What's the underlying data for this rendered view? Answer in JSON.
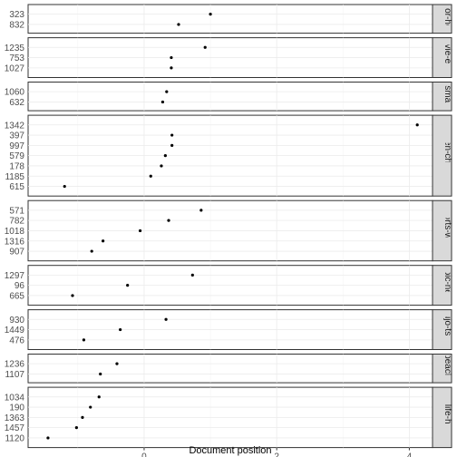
{
  "chart_data": {
    "type": "scatter",
    "xlabel": "Document position",
    "ylabel": "",
    "xlim": [
      -1.75,
      4.35
    ],
    "x_ticks": [
      0,
      2,
      4
    ],
    "facets": [
      {
        "strip_label": "Hot-Hot-hor",
        "strip_visible": "or-ho",
        "points": [
          {
            "label": "323",
            "x": 1.0
          },
          {
            "label": "832",
            "x": 0.52
          }
        ]
      },
      {
        "strip_label": "movie-ente",
        "strip_visible": "ovie-ente",
        "points": [
          {
            "label": "1235",
            "x": 0.92
          },
          {
            "label": "753",
            "x": 0.41
          },
          {
            "label": "1027",
            "x": 0.41
          }
        ]
      },
      {
        "strip_label": "smax",
        "strip_visible": "smax",
        "points": [
          {
            "label": "1060",
            "x": 0.34
          },
          {
            "label": "632",
            "x": 0.28
          }
        ]
      },
      {
        "strip_label": "kaden-channel",
        "strip_visible": "kaden-channel",
        "points": [
          {
            "label": "1342",
            "x": 4.12
          },
          {
            "label": "397",
            "x": 0.42
          },
          {
            "label": "997",
            "x": 0.42
          },
          {
            "label": "579",
            "x": 0.32
          },
          {
            "label": "178",
            "x": 0.26
          },
          {
            "label": "1185",
            "x": 0.1
          },
          {
            "label": "615",
            "x": -1.2
          }
        ]
      },
      {
        "strip_label": "sports-watch",
        "strip_visible": "sports-watch",
        "points": [
          {
            "label": "571",
            "x": 0.86
          },
          {
            "label": "782",
            "x": 0.37
          },
          {
            "label": "1018",
            "x": -0.06
          },
          {
            "label": "1316",
            "x": -0.62
          },
          {
            "label": "907",
            "x": -0.79
          }
        ]
      },
      {
        "strip_label": "topic-news",
        "strip_visible": "opic-news",
        "points": [
          {
            "label": "1297",
            "x": 0.73
          },
          {
            "label": "96",
            "x": -0.25
          },
          {
            "label": "665",
            "x": -1.08
          }
        ]
      },
      {
        "strip_label": "dokujo-tsushin",
        "strip_visible": "kujo-tsush",
        "points": [
          {
            "label": "930",
            "x": 0.33
          },
          {
            "label": "1449",
            "x": -0.36
          },
          {
            "label": "476",
            "x": -0.91
          }
        ]
      },
      {
        "strip_label": "peachy",
        "strip_visible": "peachy",
        "points": [
          {
            "label": "1236",
            "x": -0.41
          },
          {
            "label": "1107",
            "x": -0.66
          }
        ]
      },
      {
        "strip_label": "it-life-hack",
        "strip_visible": "it-life-hack",
        "points": [
          {
            "label": "1034",
            "x": -0.68
          },
          {
            "label": "190",
            "x": -0.81
          },
          {
            "label": "1363",
            "x": -0.93
          },
          {
            "label": "1457",
            "x": -1.02
          },
          {
            "label": "1120",
            "x": -1.45
          }
        ]
      }
    ]
  }
}
